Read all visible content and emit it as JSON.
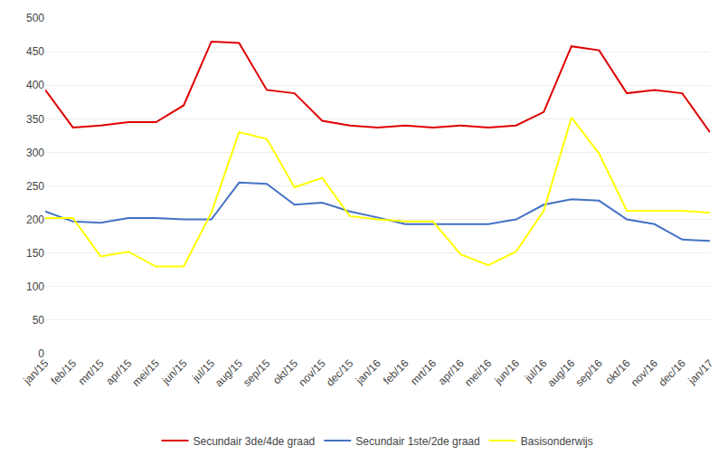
{
  "chart_data": {
    "type": "line",
    "categories": [
      "jan/15",
      "feb/15",
      "mrt/15",
      "apr/15",
      "mei/15",
      "jun/15",
      "jul/15",
      "aug/15",
      "sep/15",
      "okt/15",
      "nov/15",
      "dec/15",
      "jan/16",
      "feb/16",
      "mrt/16",
      "apr/16",
      "mei/16",
      "jun/16",
      "jul/16",
      "aug/16",
      "sep/16",
      "okt/16",
      "nov/16",
      "dec/16",
      "jan/17"
    ],
    "series": [
      {
        "name": "Secundair 3de/4de graad",
        "color": "#e00000",
        "values": [
          393,
          337,
          340,
          345,
          345,
          370,
          465,
          463,
          393,
          388,
          347,
          340,
          337,
          340,
          337,
          340,
          337,
          340,
          360,
          458,
          452,
          388,
          393,
          388,
          330
        ]
      },
      {
        "name": "Secundair 1ste/2de graad",
        "color": "#4472c4",
        "values": [
          212,
          197,
          195,
          202,
          202,
          200,
          200,
          255,
          253,
          222,
          225,
          212,
          203,
          193,
          193,
          193,
          193,
          200,
          222,
          230,
          228,
          200,
          193,
          170,
          168
        ]
      },
      {
        "name": "Basisonderwijs",
        "color": "#ffff00",
        "values": [
          202,
          202,
          145,
          152,
          130,
          130,
          210,
          330,
          320,
          248,
          262,
          205,
          200,
          197,
          197,
          148,
          132,
          152,
          213,
          352,
          298,
          213,
          213,
          213,
          210
        ]
      }
    ],
    "ylim": [
      0,
      500
    ],
    "yticks": [
      0,
      50,
      100,
      150,
      200,
      250,
      300,
      350,
      400,
      450,
      500
    ],
    "grid": "y",
    "legend": "bottom"
  }
}
